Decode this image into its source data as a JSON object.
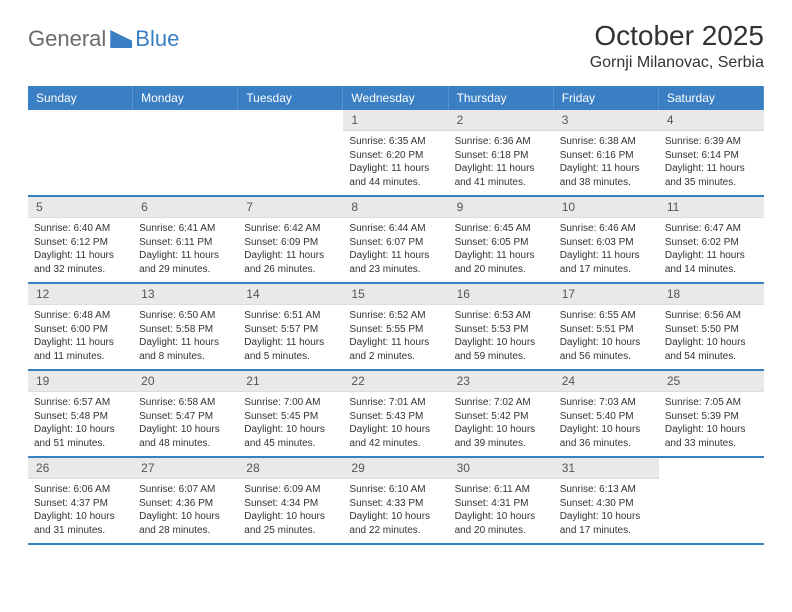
{
  "brand": {
    "part1": "General",
    "part2": "Blue"
  },
  "header": {
    "month_title": "October 2025",
    "location": "Gornji Milanovac, Serbia"
  },
  "colors": {
    "accent": "#3a7fc4",
    "header_bg": "#3a7fc4",
    "daynum_bg": "#e9e9e9",
    "text": "#333333",
    "logo_gray": "#6b6b6b"
  },
  "weekdays": [
    "Sunday",
    "Monday",
    "Tuesday",
    "Wednesday",
    "Thursday",
    "Friday",
    "Saturday"
  ],
  "weeks": [
    [
      null,
      null,
      null,
      {
        "n": "1",
        "sr": "Sunrise: 6:35 AM",
        "ss": "Sunset: 6:20 PM",
        "d1": "Daylight: 11 hours",
        "d2": "and 44 minutes."
      },
      {
        "n": "2",
        "sr": "Sunrise: 6:36 AM",
        "ss": "Sunset: 6:18 PM",
        "d1": "Daylight: 11 hours",
        "d2": "and 41 minutes."
      },
      {
        "n": "3",
        "sr": "Sunrise: 6:38 AM",
        "ss": "Sunset: 6:16 PM",
        "d1": "Daylight: 11 hours",
        "d2": "and 38 minutes."
      },
      {
        "n": "4",
        "sr": "Sunrise: 6:39 AM",
        "ss": "Sunset: 6:14 PM",
        "d1": "Daylight: 11 hours",
        "d2": "and 35 minutes."
      }
    ],
    [
      {
        "n": "5",
        "sr": "Sunrise: 6:40 AM",
        "ss": "Sunset: 6:12 PM",
        "d1": "Daylight: 11 hours",
        "d2": "and 32 minutes."
      },
      {
        "n": "6",
        "sr": "Sunrise: 6:41 AM",
        "ss": "Sunset: 6:11 PM",
        "d1": "Daylight: 11 hours",
        "d2": "and 29 minutes."
      },
      {
        "n": "7",
        "sr": "Sunrise: 6:42 AM",
        "ss": "Sunset: 6:09 PM",
        "d1": "Daylight: 11 hours",
        "d2": "and 26 minutes."
      },
      {
        "n": "8",
        "sr": "Sunrise: 6:44 AM",
        "ss": "Sunset: 6:07 PM",
        "d1": "Daylight: 11 hours",
        "d2": "and 23 minutes."
      },
      {
        "n": "9",
        "sr": "Sunrise: 6:45 AM",
        "ss": "Sunset: 6:05 PM",
        "d1": "Daylight: 11 hours",
        "d2": "and 20 minutes."
      },
      {
        "n": "10",
        "sr": "Sunrise: 6:46 AM",
        "ss": "Sunset: 6:03 PM",
        "d1": "Daylight: 11 hours",
        "d2": "and 17 minutes."
      },
      {
        "n": "11",
        "sr": "Sunrise: 6:47 AM",
        "ss": "Sunset: 6:02 PM",
        "d1": "Daylight: 11 hours",
        "d2": "and 14 minutes."
      }
    ],
    [
      {
        "n": "12",
        "sr": "Sunrise: 6:48 AM",
        "ss": "Sunset: 6:00 PM",
        "d1": "Daylight: 11 hours",
        "d2": "and 11 minutes."
      },
      {
        "n": "13",
        "sr": "Sunrise: 6:50 AM",
        "ss": "Sunset: 5:58 PM",
        "d1": "Daylight: 11 hours",
        "d2": "and 8 minutes."
      },
      {
        "n": "14",
        "sr": "Sunrise: 6:51 AM",
        "ss": "Sunset: 5:57 PM",
        "d1": "Daylight: 11 hours",
        "d2": "and 5 minutes."
      },
      {
        "n": "15",
        "sr": "Sunrise: 6:52 AM",
        "ss": "Sunset: 5:55 PM",
        "d1": "Daylight: 11 hours",
        "d2": "and 2 minutes."
      },
      {
        "n": "16",
        "sr": "Sunrise: 6:53 AM",
        "ss": "Sunset: 5:53 PM",
        "d1": "Daylight: 10 hours",
        "d2": "and 59 minutes."
      },
      {
        "n": "17",
        "sr": "Sunrise: 6:55 AM",
        "ss": "Sunset: 5:51 PM",
        "d1": "Daylight: 10 hours",
        "d2": "and 56 minutes."
      },
      {
        "n": "18",
        "sr": "Sunrise: 6:56 AM",
        "ss": "Sunset: 5:50 PM",
        "d1": "Daylight: 10 hours",
        "d2": "and 54 minutes."
      }
    ],
    [
      {
        "n": "19",
        "sr": "Sunrise: 6:57 AM",
        "ss": "Sunset: 5:48 PM",
        "d1": "Daylight: 10 hours",
        "d2": "and 51 minutes."
      },
      {
        "n": "20",
        "sr": "Sunrise: 6:58 AM",
        "ss": "Sunset: 5:47 PM",
        "d1": "Daylight: 10 hours",
        "d2": "and 48 minutes."
      },
      {
        "n": "21",
        "sr": "Sunrise: 7:00 AM",
        "ss": "Sunset: 5:45 PM",
        "d1": "Daylight: 10 hours",
        "d2": "and 45 minutes."
      },
      {
        "n": "22",
        "sr": "Sunrise: 7:01 AM",
        "ss": "Sunset: 5:43 PM",
        "d1": "Daylight: 10 hours",
        "d2": "and 42 minutes."
      },
      {
        "n": "23",
        "sr": "Sunrise: 7:02 AM",
        "ss": "Sunset: 5:42 PM",
        "d1": "Daylight: 10 hours",
        "d2": "and 39 minutes."
      },
      {
        "n": "24",
        "sr": "Sunrise: 7:03 AM",
        "ss": "Sunset: 5:40 PM",
        "d1": "Daylight: 10 hours",
        "d2": "and 36 minutes."
      },
      {
        "n": "25",
        "sr": "Sunrise: 7:05 AM",
        "ss": "Sunset: 5:39 PM",
        "d1": "Daylight: 10 hours",
        "d2": "and 33 minutes."
      }
    ],
    [
      {
        "n": "26",
        "sr": "Sunrise: 6:06 AM",
        "ss": "Sunset: 4:37 PM",
        "d1": "Daylight: 10 hours",
        "d2": "and 31 minutes."
      },
      {
        "n": "27",
        "sr": "Sunrise: 6:07 AM",
        "ss": "Sunset: 4:36 PM",
        "d1": "Daylight: 10 hours",
        "d2": "and 28 minutes."
      },
      {
        "n": "28",
        "sr": "Sunrise: 6:09 AM",
        "ss": "Sunset: 4:34 PM",
        "d1": "Daylight: 10 hours",
        "d2": "and 25 minutes."
      },
      {
        "n": "29",
        "sr": "Sunrise: 6:10 AM",
        "ss": "Sunset: 4:33 PM",
        "d1": "Daylight: 10 hours",
        "d2": "and 22 minutes."
      },
      {
        "n": "30",
        "sr": "Sunrise: 6:11 AM",
        "ss": "Sunset: 4:31 PM",
        "d1": "Daylight: 10 hours",
        "d2": "and 20 minutes."
      },
      {
        "n": "31",
        "sr": "Sunrise: 6:13 AM",
        "ss": "Sunset: 4:30 PM",
        "d1": "Daylight: 10 hours",
        "d2": "and 17 minutes."
      },
      null
    ]
  ]
}
